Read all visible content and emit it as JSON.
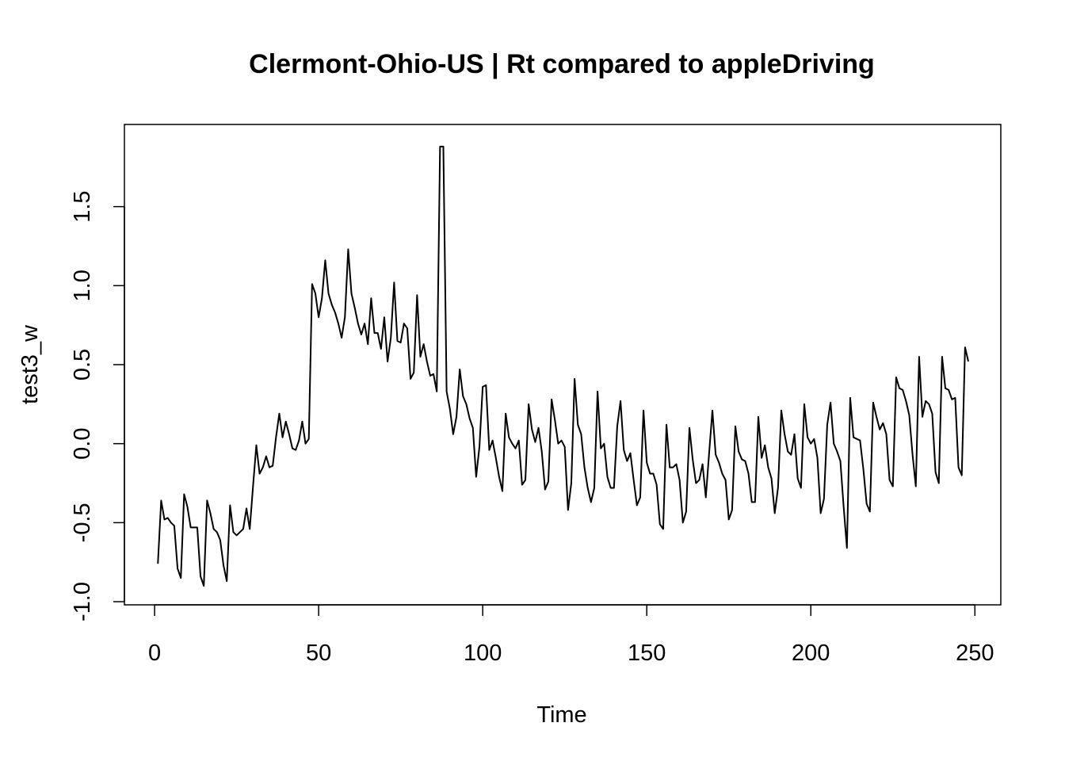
{
  "chart_data": {
    "type": "line",
    "title": "Clermont-Ohio-US | Rt compared to appleDriving",
    "xlabel": "Time",
    "ylabel": "test3_w",
    "xlim": [
      -9.2,
      257.9
    ],
    "ylim": [
      -1.02,
      2.02
    ],
    "x_ticks": [
      0,
      50,
      100,
      150,
      200,
      250
    ],
    "x_tick_labels": [
      "0",
      "50",
      "100",
      "150",
      "200",
      "250"
    ],
    "y_ticks": [
      -1.0,
      -0.5,
      0.0,
      0.5,
      1.0,
      1.5
    ],
    "y_tick_labels": [
      "-1.0",
      "-0.5",
      "0.0",
      "0.5",
      "1.0",
      "1.5"
    ],
    "grid": false,
    "legend": "none",
    "line_color": "#000000",
    "series": [
      {
        "x_start": 1,
        "values": [
          -0.76,
          -0.36,
          -0.48,
          -0.47,
          -0.5,
          -0.52,
          -0.79,
          -0.85,
          -0.32,
          -0.4,
          -0.53,
          -0.53,
          -0.53,
          -0.84,
          -0.9,
          -0.36,
          -0.44,
          -0.54,
          -0.56,
          -0.61,
          -0.77,
          -0.87,
          -0.39,
          -0.56,
          -0.58,
          -0.56,
          -0.54,
          -0.41,
          -0.54,
          -0.27,
          -0.01,
          -0.19,
          -0.15,
          -0.08,
          -0.15,
          -0.14,
          0.04,
          0.19,
          0.04,
          0.14,
          0.06,
          -0.03,
          -0.04,
          0.02,
          0.14,
          0.0,
          0.03,
          1.01,
          0.95,
          0.8,
          0.92,
          1.16,
          0.95,
          0.88,
          0.83,
          0.76,
          0.67,
          0.8,
          1.23,
          0.95,
          0.86,
          0.76,
          0.69,
          0.76,
          0.63,
          0.92,
          0.7,
          0.7,
          0.6,
          0.8,
          0.52,
          0.67,
          1.02,
          0.65,
          0.64,
          0.76,
          0.73,
          0.41,
          0.45,
          0.94,
          0.55,
          0.63,
          0.52,
          0.43,
          0.44,
          0.33,
          1.88,
          1.88,
          0.33,
          0.22,
          0.06,
          0.17,
          0.47,
          0.3,
          0.25,
          0.16,
          0.1,
          -0.21,
          -0.02,
          0.36,
          0.37,
          -0.04,
          0.02,
          -0.09,
          -0.21,
          -0.3,
          0.19,
          0.04,
          0.0,
          -0.03,
          0.02,
          -0.26,
          -0.23,
          0.25,
          0.09,
          0.01,
          0.1,
          -0.05,
          -0.29,
          -0.24,
          0.28,
          0.15,
          0.0,
          0.02,
          -0.02,
          -0.42,
          -0.25,
          0.41,
          0.12,
          0.06,
          -0.15,
          -0.28,
          -0.37,
          -0.28,
          0.33,
          -0.03,
          0.0,
          -0.21,
          -0.28,
          -0.28,
          0.11,
          0.27,
          -0.04,
          -0.11,
          -0.06,
          -0.23,
          -0.39,
          -0.34,
          0.21,
          -0.12,
          -0.19,
          -0.19,
          -0.26,
          -0.51,
          -0.54,
          0.12,
          -0.15,
          -0.15,
          -0.13,
          -0.23,
          -0.5,
          -0.43,
          0.1,
          -0.1,
          -0.25,
          -0.23,
          -0.13,
          -0.34,
          -0.06,
          0.21,
          -0.07,
          -0.12,
          -0.19,
          -0.23,
          -0.48,
          -0.42,
          0.11,
          -0.05,
          -0.1,
          -0.11,
          -0.19,
          -0.37,
          -0.37,
          0.17,
          -0.09,
          -0.01,
          -0.15,
          -0.22,
          -0.44,
          -0.28,
          0.21,
          0.06,
          -0.05,
          -0.07,
          0.06,
          -0.22,
          -0.28,
          0.25,
          0.04,
          0.0,
          0.03,
          -0.09,
          -0.44,
          -0.35,
          0.12,
          0.26,
          0.0,
          -0.05,
          -0.11,
          -0.4,
          -0.66,
          0.29,
          0.04,
          0.03,
          0.02,
          -0.16,
          -0.38,
          -0.43,
          0.26,
          0.17,
          0.09,
          0.13,
          0.06,
          -0.23,
          -0.27,
          0.42,
          0.35,
          0.34,
          0.27,
          0.18,
          -0.07,
          -0.27,
          0.55,
          0.17,
          0.27,
          0.25,
          0.19,
          -0.18,
          -0.25,
          0.55,
          0.35,
          0.34,
          0.28,
          0.29,
          -0.15,
          -0.2,
          0.61,
          0.52
        ]
      }
    ]
  }
}
